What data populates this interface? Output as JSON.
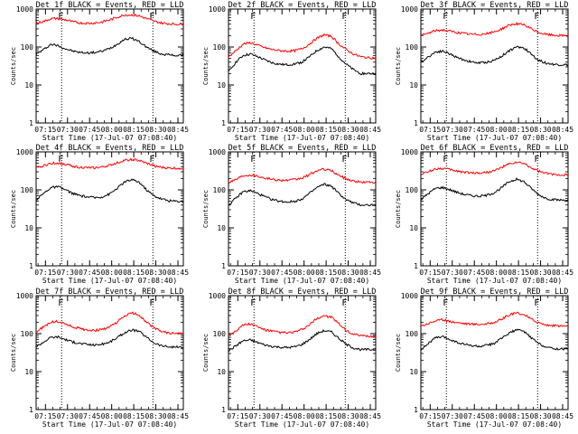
{
  "page": {
    "common_xlabel": "Start Time (17-Jul-07 07:08:40)",
    "common_ylabel": "Counts/sec",
    "flare_marker": "F",
    "x_tick_labels": [
      "07:15",
      "07:30",
      "07:45",
      "08:00",
      "08:15",
      "08:30",
      "08:45"
    ],
    "y_tick_labels": [
      "1",
      "10",
      "100",
      "1000"
    ]
  },
  "colors": {
    "events": "#000000",
    "lld": "#ff0000",
    "axes": "#000000",
    "background": "#ffffff"
  },
  "chart_data": [
    {
      "type": "line",
      "title": "Det 1f BLACK = Events, RED = LLD",
      "xlabel": "Start Time (17-Jul-07 07:08:40)",
      "ylabel": "Counts/sec",
      "yscale": "log",
      "ylim": [
        1,
        1000
      ],
      "x_ticks": [
        "07:15",
        "07:30",
        "07:45",
        "08:00",
        "08:15",
        "08:30",
        "08:45"
      ],
      "x": [
        0,
        5,
        10,
        15,
        20,
        25,
        30,
        35,
        40,
        45,
        50,
        55,
        60,
        65,
        70,
        75,
        80,
        85,
        90,
        95,
        100
      ],
      "series": [
        {
          "name": "Events",
          "color": "#000000",
          "values": [
            65,
            85,
            118,
            108,
            90,
            78,
            72,
            70,
            72,
            78,
            92,
            118,
            160,
            170,
            140,
            100,
            78,
            66,
            62,
            60,
            60
          ]
        },
        {
          "name": "RED = LLD",
          "color": "#ff0000",
          "values": [
            420,
            470,
            560,
            560,
            520,
            460,
            430,
            420,
            430,
            460,
            520,
            610,
            700,
            700,
            660,
            560,
            480,
            430,
            410,
            400,
            400
          ]
        }
      ],
      "dotted_vlines": [
        "07:26",
        "08:28"
      ]
    },
    {
      "type": "line",
      "title": "Det 2f BLACK = Events, RED = LLD",
      "xlabel": "Start Time (17-Jul-07 07:08:40)",
      "ylabel": "Counts/sec",
      "yscale": "log",
      "ylim": [
        1,
        1000
      ],
      "x_ticks": [
        "07:15",
        "07:30",
        "07:45",
        "08:00",
        "08:15",
        "08:30",
        "08:45"
      ],
      "x": [
        0,
        5,
        10,
        15,
        20,
        25,
        30,
        35,
        40,
        45,
        50,
        55,
        60,
        65,
        70,
        75,
        80,
        85,
        90,
        95,
        100
      ],
      "series": [
        {
          "name": "Events",
          "color": "#000000",
          "values": [
            22,
            40,
            60,
            65,
            55,
            45,
            38,
            35,
            34,
            36,
            40,
            55,
            80,
            100,
            90,
            55,
            35,
            25,
            20,
            20,
            20
          ]
        },
        {
          "name": "RED = LLD",
          "color": "#ff0000",
          "values": [
            55,
            80,
            120,
            130,
            110,
            95,
            85,
            80,
            78,
            80,
            90,
            120,
            170,
            210,
            190,
            120,
            85,
            65,
            55,
            52,
            52
          ]
        }
      ],
      "dotted_vlines": [
        "07:26",
        "08:28"
      ]
    },
    {
      "type": "line",
      "title": "Det 3f BLACK = Events, RED = LLD",
      "xlabel": "Start Time (17-Jul-07 07:08:40)",
      "ylabel": "Counts/sec",
      "yscale": "log",
      "ylim": [
        1,
        1000
      ],
      "x_ticks": [
        "07:15",
        "07:30",
        "07:45",
        "08:00",
        "08:15",
        "08:30",
        "08:45"
      ],
      "x": [
        0,
        5,
        10,
        15,
        20,
        25,
        30,
        35,
        40,
        45,
        50,
        55,
        60,
        65,
        70,
        75,
        80,
        85,
        90,
        95,
        100
      ],
      "series": [
        {
          "name": "Events",
          "color": "#000000",
          "values": [
            40,
            55,
            75,
            78,
            65,
            52,
            45,
            40,
            38,
            40,
            45,
            58,
            80,
            100,
            95,
            65,
            45,
            38,
            35,
            34,
            34
          ]
        },
        {
          "name": "RED = LLD",
          "color": "#ff0000",
          "values": [
            200,
            230,
            270,
            280,
            260,
            240,
            225,
            215,
            215,
            225,
            250,
            300,
            380,
            410,
            380,
            300,
            240,
            215,
            205,
            200,
            200
          ]
        }
      ],
      "dotted_vlines": [
        "07:26",
        "08:28"
      ]
    },
    {
      "type": "line",
      "title": "Det 4f BLACK = Events, RED = LLD",
      "xlabel": "Start Time (17-Jul-07 07:08:40)",
      "ylabel": "Counts/sec",
      "yscale": "log",
      "ylim": [
        1,
        1000
      ],
      "x_ticks": [
        "07:15",
        "07:30",
        "07:45",
        "08:00",
        "08:15",
        "08:30",
        "08:45"
      ],
      "x": [
        0,
        5,
        10,
        15,
        20,
        25,
        30,
        35,
        40,
        45,
        50,
        55,
        60,
        65,
        70,
        75,
        80,
        85,
        90,
        95,
        100
      ],
      "series": [
        {
          "name": "Events",
          "color": "#000000",
          "values": [
            55,
            80,
            115,
            120,
            100,
            80,
            70,
            65,
            62,
            66,
            78,
            110,
            160,
            185,
            160,
            100,
            70,
            58,
            52,
            50,
            50
          ]
        },
        {
          "name": "RED = LLD",
          "color": "#ff0000",
          "values": [
            380,
            430,
            500,
            510,
            470,
            420,
            395,
            380,
            380,
            400,
            440,
            520,
            600,
            630,
            590,
            500,
            430,
            390,
            375,
            370,
            370
          ]
        }
      ],
      "dotted_vlines": [
        "07:26",
        "08:28"
      ]
    },
    {
      "type": "line",
      "title": "Det 5f BLACK = Events, RED = LLD",
      "xlabel": "Start Time (17-Jul-07 07:08:40)",
      "ylabel": "Counts/sec",
      "yscale": "log",
      "ylim": [
        1,
        1000
      ],
      "x_ticks": [
        "07:15",
        "07:30",
        "07:45",
        "08:00",
        "08:15",
        "08:30",
        "08:45"
      ],
      "x": [
        0,
        5,
        10,
        15,
        20,
        25,
        30,
        35,
        40,
        45,
        50,
        55,
        60,
        65,
        70,
        75,
        80,
        85,
        90,
        95,
        100
      ],
      "series": [
        {
          "name": "Events",
          "color": "#000000",
          "values": [
            40,
            60,
            90,
            95,
            80,
            65,
            55,
            50,
            48,
            50,
            58,
            80,
            115,
            140,
            125,
            80,
            55,
            45,
            40,
            40,
            40
          ]
        },
        {
          "name": "RED = LLD",
          "color": "#ff0000",
          "values": [
            160,
            190,
            240,
            250,
            230,
            205,
            190,
            180,
            178,
            185,
            205,
            250,
            320,
            350,
            320,
            240,
            195,
            170,
            160,
            160,
            160
          ]
        }
      ],
      "dotted_vlines": [
        "07:26",
        "08:28"
      ]
    },
    {
      "type": "line",
      "title": "Det 6f BLACK = Events, RED = LLD",
      "xlabel": "Start Time (17-Jul-07 07:08:40)",
      "ylabel": "Counts/sec",
      "yscale": "log",
      "ylim": [
        1,
        1000
      ],
      "x_ticks": [
        "07:15",
        "07:30",
        "07:45",
        "08:00",
        "08:15",
        "08:30",
        "08:45"
      ],
      "x": [
        0,
        5,
        10,
        15,
        20,
        25,
        30,
        35,
        40,
        45,
        50,
        55,
        60,
        65,
        70,
        75,
        80,
        85,
        90,
        95,
        100
      ],
      "series": [
        {
          "name": "Events",
          "color": "#000000",
          "values": [
            55,
            80,
            110,
            115,
            100,
            85,
            75,
            70,
            68,
            72,
            85,
            115,
            165,
            190,
            165,
            110,
            75,
            60,
            55,
            54,
            54
          ]
        },
        {
          "name": "RED = LLD",
          "color": "#ff0000",
          "values": [
            260,
            300,
            360,
            370,
            340,
            310,
            290,
            280,
            278,
            290,
            320,
            390,
            480,
            530,
            490,
            380,
            310,
            270,
            255,
            250,
            250
          ]
        }
      ],
      "dotted_vlines": [
        "07:26",
        "08:28"
      ]
    },
    {
      "type": "line",
      "title": "Det 7f BLACK = Events, RED = LLD",
      "xlabel": "Start Time (17-Jul-07 07:08:40)",
      "ylabel": "Counts/sec",
      "yscale": "log",
      "ylim": [
        1,
        1000
      ],
      "x_ticks": [
        "07:15",
        "07:30",
        "07:45",
        "08:00",
        "08:15",
        "08:30",
        "08:45"
      ],
      "x": [
        0,
        5,
        10,
        15,
        20,
        25,
        30,
        35,
        40,
        45,
        50,
        55,
        60,
        65,
        70,
        75,
        80,
        85,
        90,
        95,
        100
      ],
      "series": [
        {
          "name": "Events",
          "color": "#000000",
          "values": [
            45,
            60,
            80,
            82,
            70,
            60,
            55,
            52,
            50,
            53,
            60,
            78,
            105,
            125,
            115,
            80,
            58,
            48,
            45,
            44,
            44
          ]
        },
        {
          "name": "RED = LLD",
          "color": "#ff0000",
          "values": [
            110,
            150,
            200,
            210,
            180,
            150,
            135,
            125,
            122,
            128,
            150,
            200,
            290,
            350,
            310,
            200,
            140,
            115,
            105,
            100,
            100
          ]
        }
      ],
      "dotted_vlines": [
        "07:26",
        "08:28"
      ]
    },
    {
      "type": "line",
      "title": "Det 8f BLACK = Events, RED = LLD",
      "xlabel": "Start Time (17-Jul-07 07:08:40)",
      "ylabel": "Counts/sec",
      "yscale": "log",
      "ylim": [
        1,
        1000
      ],
      "x_ticks": [
        "07:15",
        "07:30",
        "07:45",
        "08:00",
        "08:15",
        "08:30",
        "08:45"
      ],
      "x": [
        0,
        5,
        10,
        15,
        20,
        25,
        30,
        35,
        40,
        45,
        50,
        55,
        60,
        65,
        70,
        75,
        80,
        85,
        90,
        95,
        100
      ],
      "series": [
        {
          "name": "Events",
          "color": "#000000",
          "values": [
            35,
            48,
            65,
            68,
            58,
            50,
            46,
            44,
            43,
            45,
            52,
            70,
            100,
            120,
            110,
            75,
            52,
            42,
            38,
            38,
            38
          ]
        },
        {
          "name": "RED = LLD",
          "color": "#ff0000",
          "values": [
            90,
            120,
            170,
            180,
            150,
            125,
            115,
            108,
            105,
            110,
            128,
            170,
            250,
            300,
            270,
            180,
            120,
            95,
            88,
            85,
            85
          ]
        }
      ],
      "dotted_vlines": [
        "07:26",
        "08:28"
      ]
    },
    {
      "type": "line",
      "title": "Det 9f BLACK = Events, RED = LLD",
      "xlabel": "Start Time (17-Jul-07 07:08:40)",
      "ylabel": "Counts/sec",
      "yscale": "log",
      "ylim": [
        1,
        1000
      ],
      "x_ticks": [
        "07:15",
        "07:30",
        "07:45",
        "08:00",
        "08:15",
        "08:30",
        "08:45"
      ],
      "x": [
        0,
        5,
        10,
        15,
        20,
        25,
        30,
        35,
        40,
        45,
        50,
        55,
        60,
        65,
        70,
        75,
        80,
        85,
        90,
        95,
        100
      ],
      "series": [
        {
          "name": "Events",
          "color": "#000000",
          "values": [
            38,
            55,
            78,
            82,
            70,
            58,
            52,
            48,
            46,
            49,
            56,
            75,
            105,
            125,
            115,
            78,
            55,
            45,
            40,
            40,
            40
          ]
        },
        {
          "name": "RED = LLD",
          "color": "#ff0000",
          "values": [
            160,
            185,
            220,
            230,
            210,
            195,
            185,
            178,
            176,
            182,
            200,
            240,
            310,
            350,
            320,
            240,
            195,
            170,
            162,
            160,
            160
          ]
        }
      ],
      "dotted_vlines": [
        "07:26",
        "08:28"
      ]
    }
  ]
}
